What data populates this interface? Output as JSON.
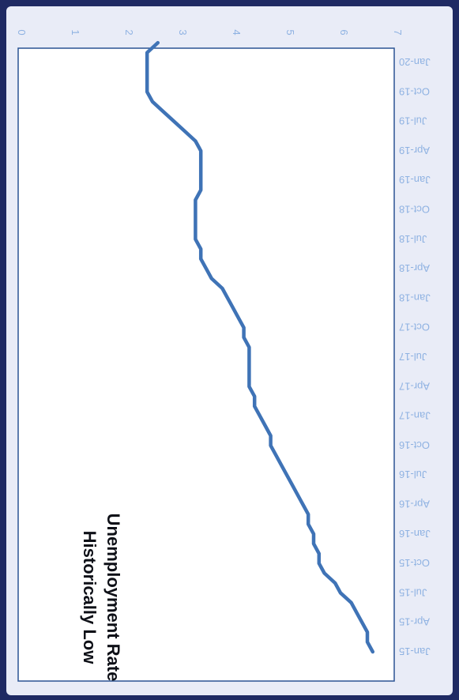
{
  "chart_data": {
    "type": "line",
    "title": [
      "Historically Low",
      "Unemployment Rate"
    ],
    "xlabel": "",
    "ylabel": "",
    "ylim": [
      0,
      7
    ],
    "yticks": [
      0,
      1,
      2,
      3,
      4,
      5,
      6,
      7
    ],
    "categories": [
      "Jan-15",
      "Apr-15",
      "Jul-15",
      "Oct-15",
      "Jan-16",
      "Apr-16",
      "Jul-16",
      "Oct-16",
      "Jan-17",
      "Apr-17",
      "Jul-17",
      "Oct-17",
      "Jan-18",
      "Apr-18",
      "Jul-18",
      "Oct-18",
      "Jan-19",
      "Apr-19",
      "Jul-19",
      "Oct-19",
      "Jan-20"
    ],
    "grid": false,
    "legend": "none",
    "orientation": "rotated-180",
    "series": [
      {
        "values": [
          {
            "x": "Jan-15",
            "y": 6.6
          },
          {
            "x": "Feb-15",
            "y": 6.5
          },
          {
            "x": "Mar-15",
            "y": 6.5
          },
          {
            "x": "Apr-15",
            "y": 6.4
          },
          {
            "x": "May-15",
            "y": 6.3
          },
          {
            "x": "Jun-15",
            "y": 6.2
          },
          {
            "x": "Jul-15",
            "y": 6.0
          },
          {
            "x": "Aug-15",
            "y": 5.9
          },
          {
            "x": "Sep-15",
            "y": 5.7
          },
          {
            "x": "Oct-15",
            "y": 5.6
          },
          {
            "x": "Nov-15",
            "y": 5.6
          },
          {
            "x": "Dec-15",
            "y": 5.5
          },
          {
            "x": "Jan-16",
            "y": 5.5
          },
          {
            "x": "Feb-16",
            "y": 5.4
          },
          {
            "x": "Mar-16",
            "y": 5.4
          },
          {
            "x": "Apr-16",
            "y": 5.3
          },
          {
            "x": "May-16",
            "y": 5.2
          },
          {
            "x": "Jun-16",
            "y": 5.1
          },
          {
            "x": "Jul-16",
            "y": 5.0
          },
          {
            "x": "Aug-16",
            "y": 4.9
          },
          {
            "x": "Sep-16",
            "y": 4.8
          },
          {
            "x": "Oct-16",
            "y": 4.7
          },
          {
            "x": "Nov-16",
            "y": 4.7
          },
          {
            "x": "Dec-16",
            "y": 4.6
          },
          {
            "x": "Jan-17",
            "y": 4.5
          },
          {
            "x": "Feb-17",
            "y": 4.4
          },
          {
            "x": "Mar-17",
            "y": 4.4
          },
          {
            "x": "Apr-17",
            "y": 4.3
          },
          {
            "x": "May-17",
            "y": 4.3
          },
          {
            "x": "Jun-17",
            "y": 4.3
          },
          {
            "x": "Jul-17",
            "y": 4.3
          },
          {
            "x": "Aug-17",
            "y": 4.3
          },
          {
            "x": "Sep-17",
            "y": 4.2
          },
          {
            "x": "Oct-17",
            "y": 4.2
          },
          {
            "x": "Nov-17",
            "y": 4.1
          },
          {
            "x": "Dec-17",
            "y": 4.0
          },
          {
            "x": "Jan-18",
            "y": 3.9
          },
          {
            "x": "Feb-18",
            "y": 3.8
          },
          {
            "x": "Mar-18",
            "y": 3.6
          },
          {
            "x": "Apr-18",
            "y": 3.5
          },
          {
            "x": "May-18",
            "y": 3.4
          },
          {
            "x": "Jun-18",
            "y": 3.4
          },
          {
            "x": "Jul-18",
            "y": 3.3
          },
          {
            "x": "Aug-18",
            "y": 3.3
          },
          {
            "x": "Sep-18",
            "y": 3.3
          },
          {
            "x": "Oct-18",
            "y": 3.3
          },
          {
            "x": "Nov-18",
            "y": 3.3
          },
          {
            "x": "Dec-18",
            "y": 3.4
          },
          {
            "x": "Jan-19",
            "y": 3.4
          },
          {
            "x": "Feb-19",
            "y": 3.4
          },
          {
            "x": "Mar-19",
            "y": 3.4
          },
          {
            "x": "Apr-19",
            "y": 3.4
          },
          {
            "x": "May-19",
            "y": 3.3
          },
          {
            "x": "Jun-19",
            "y": 3.1
          },
          {
            "x": "Jul-19",
            "y": 2.9
          },
          {
            "x": "Aug-19",
            "y": 2.7
          },
          {
            "x": "Sep-19",
            "y": 2.5
          },
          {
            "x": "Oct-19",
            "y": 2.4
          },
          {
            "x": "Nov-19",
            "y": 2.4
          },
          {
            "x": "Dec-19",
            "y": 2.4
          },
          {
            "x": "Jan-20",
            "y": 2.4
          },
          {
            "x": "Feb-20",
            "y": 2.4
          },
          {
            "x": "Mar-20",
            "y": 2.6
          }
        ]
      }
    ]
  },
  "colors": {
    "series": "#3f73b6",
    "tick_text": "#8fb2e2",
    "frame": "#1f2a63",
    "plot_border": "#2a5394"
  }
}
